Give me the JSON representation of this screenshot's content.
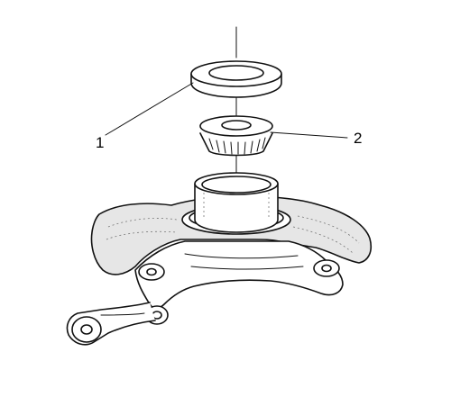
{
  "callouts": [
    {
      "id": "seal",
      "label": "1"
    },
    {
      "id": "bearing",
      "label": "2"
    }
  ]
}
